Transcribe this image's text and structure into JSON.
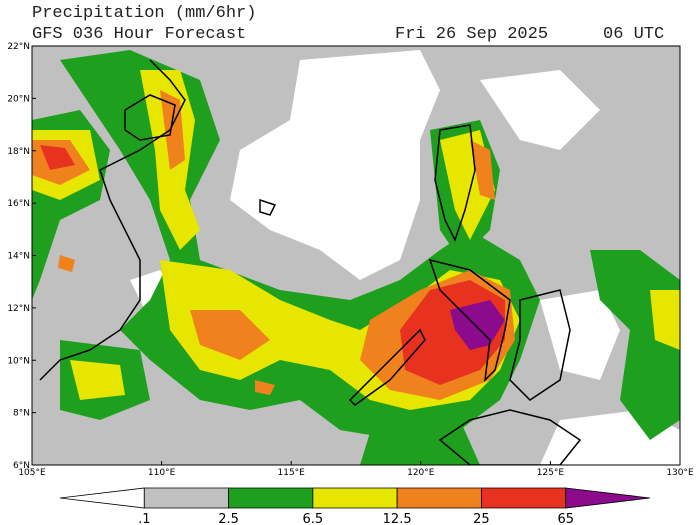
{
  "header": {
    "title": "Precipitation (mm/6hr)",
    "subtitle": "GFS 036 Hour Forecast",
    "date": "Fri 26 Sep 2025",
    "time": "06 UTC"
  },
  "map": {
    "lat_labels": [
      "22°N",
      "20°N",
      "18°N",
      "16°N",
      "14°N",
      "12°N",
      "10°N",
      "8°N",
      "6°N"
    ],
    "lon_labels": [
      "105°E",
      "110°E",
      "115°E",
      "120°E",
      "125°E",
      "130°E"
    ]
  },
  "colorbar": {
    "labels": [
      ".1",
      "2.5",
      "6.5",
      "12.5",
      "25",
      "65"
    ],
    "colors": [
      "#ffffff",
      "#c0c0c0",
      "#1ea01e",
      "#e6e600",
      "#f0821e",
      "#e6321e",
      "#8c0a8c"
    ]
  }
}
